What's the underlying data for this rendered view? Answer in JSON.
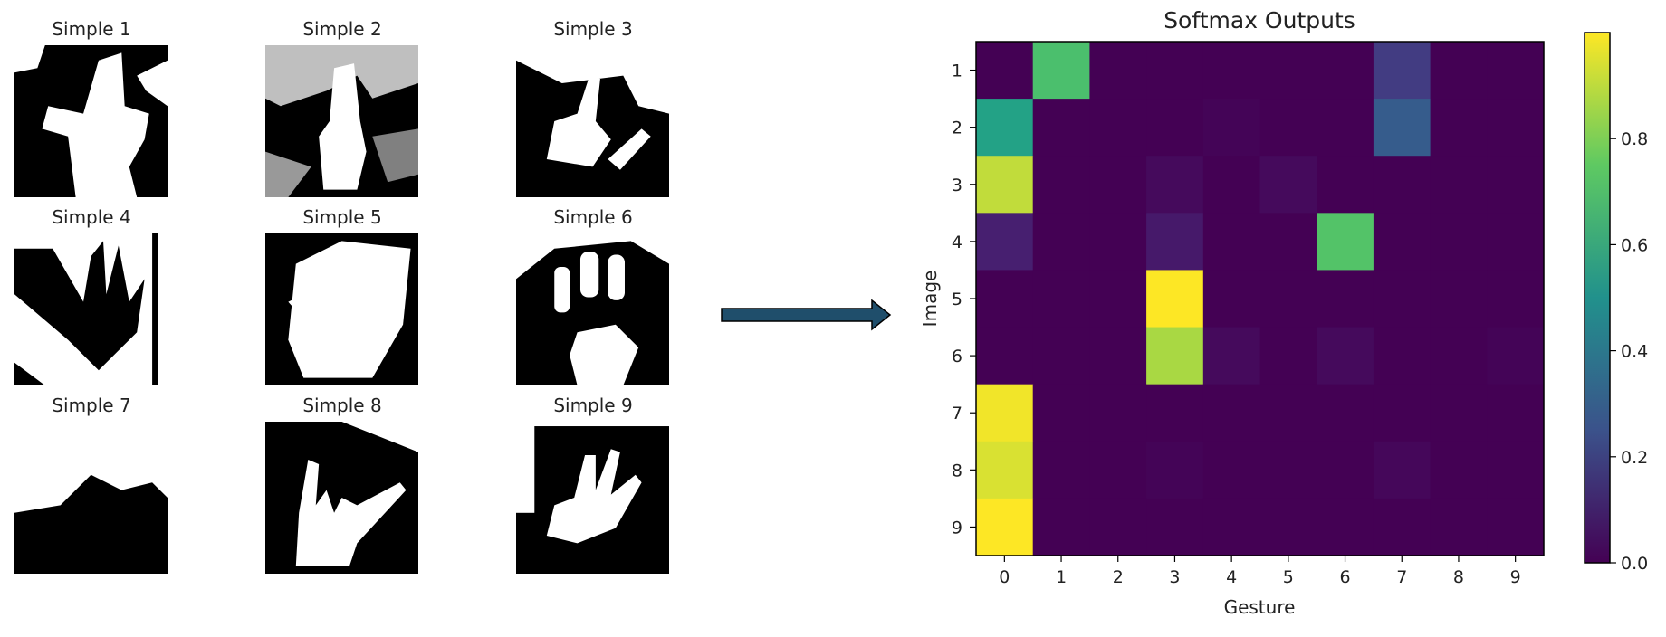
{
  "thumbnails": [
    {
      "title": "Simple 1"
    },
    {
      "title": "Simple 2"
    },
    {
      "title": "Simple 3"
    },
    {
      "title": "Simple 4"
    },
    {
      "title": "Simple 5"
    },
    {
      "title": "Simple 6"
    },
    {
      "title": "Simple 7"
    },
    {
      "title": "Simple 8"
    },
    {
      "title": "Simple 9"
    }
  ],
  "arrow_color": "#1f4e6b",
  "chart_data": {
    "type": "heatmap",
    "title": "Softmax Outputs",
    "xlabel": "Gesture",
    "ylabel": "Image",
    "x_tick_labels": [
      "0",
      "1",
      "2",
      "3",
      "4",
      "5",
      "6",
      "7",
      "8",
      "9"
    ],
    "y_tick_labels": [
      "1",
      "2",
      "3",
      "4",
      "5",
      "6",
      "7",
      "8",
      "9"
    ],
    "colormap": "viridis",
    "colorbar_range": [
      0.0,
      1.0
    ],
    "colorbar_ticks": [
      "0.0",
      "0.2",
      "0.4",
      "0.6",
      "0.8"
    ],
    "colorbar_tick_values": [
      0.0,
      0.2,
      0.4,
      0.6,
      0.8
    ],
    "values": [
      [
        0.0,
        0.8,
        0.0,
        0.0,
        0.0,
        0.0,
        0.0,
        0.2,
        0.0,
        0.0
      ],
      [
        0.65,
        0.0,
        0.0,
        0.0,
        0.01,
        0.0,
        0.0,
        0.33,
        0.0,
        0.0
      ],
      [
        0.95,
        0.0,
        0.0,
        0.03,
        0.0,
        0.03,
        0.0,
        0.0,
        0.0,
        0.0
      ],
      [
        0.1,
        0.0,
        0.0,
        0.08,
        0.0,
        0.0,
        0.82,
        0.0,
        0.0,
        0.0
      ],
      [
        0.0,
        0.0,
        0.0,
        1.0,
        0.0,
        0.0,
        0.0,
        0.0,
        0.0,
        0.0
      ],
      [
        0.0,
        0.0,
        0.0,
        0.93,
        0.03,
        0.0,
        0.03,
        0.0,
        0.0,
        0.01
      ],
      [
        0.99,
        0.0,
        0.0,
        0.0,
        0.0,
        0.0,
        0.0,
        0.0,
        0.0,
        0.0
      ],
      [
        0.97,
        0.0,
        0.0,
        0.01,
        0.0,
        0.0,
        0.0,
        0.02,
        0.0,
        0.0
      ],
      [
        1.0,
        0.0,
        0.0,
        0.0,
        0.0,
        0.0,
        0.0,
        0.0,
        0.0,
        0.0
      ]
    ]
  }
}
